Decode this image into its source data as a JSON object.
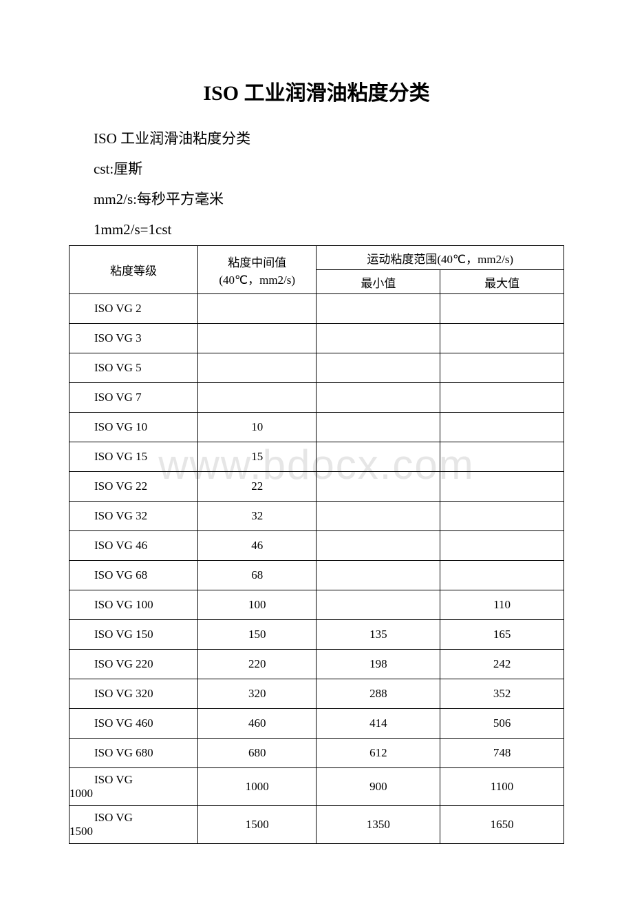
{
  "title_latin": "ISO ",
  "title_cn": "工业润滑油粘度分类",
  "intro": [
    {
      "latin": "ISO ",
      "cn": "工业润滑油粘度分类"
    },
    {
      "latin": "cst:",
      "cn": "厘斯"
    },
    {
      "latin": "mm2/s:",
      "cn": "每秒平方毫米"
    },
    {
      "latin": "1mm2/s=1cst",
      "cn": ""
    }
  ],
  "table": {
    "headers": {
      "grade": "粘度等级",
      "mid_cn": "粘度中间值",
      "mid_unit": "(40℃，mm2/s)",
      "range_cn": "运动粘度范围",
      "range_unit": "(40℃，mm2/s)",
      "min": "最小值",
      "max": "最大值"
    },
    "rows": [
      {
        "grade": "ISO VG 2",
        "mid": "",
        "min": "",
        "max": ""
      },
      {
        "grade": "ISO VG 3",
        "mid": "",
        "min": "",
        "max": ""
      },
      {
        "grade": "ISO VG 5",
        "mid": "",
        "min": "",
        "max": ""
      },
      {
        "grade": "ISO VG 7",
        "mid": "",
        "min": "",
        "max": ""
      },
      {
        "grade": "ISO VG 10",
        "mid": "10",
        "min": "",
        "max": ""
      },
      {
        "grade": "ISO VG 15",
        "mid": "15",
        "min": "",
        "max": ""
      },
      {
        "grade": "ISO VG 22",
        "mid": "22",
        "min": "",
        "max": ""
      },
      {
        "grade": "ISO VG 32",
        "mid": "32",
        "min": "",
        "max": ""
      },
      {
        "grade": "ISO VG 46",
        "mid": "46",
        "min": "",
        "max": ""
      },
      {
        "grade": "ISO VG 68",
        "mid": "68",
        "min": "",
        "max": ""
      },
      {
        "grade": "ISO VG 100",
        "mid": "100",
        "min": "",
        "max": "110"
      },
      {
        "grade": "ISO VG 150",
        "mid": "150",
        "min": "135",
        "max": "165"
      },
      {
        "grade": "ISO VG 220",
        "mid": "220",
        "min": "198",
        "max": "242"
      },
      {
        "grade": "ISO VG 320",
        "mid": "320",
        "min": "288",
        "max": "352"
      },
      {
        "grade": "ISO VG 460",
        "mid": "460",
        "min": "414",
        "max": "506"
      },
      {
        "grade": "ISO VG 680",
        "mid": "680",
        "min": "612",
        "max": "748"
      },
      {
        "grade_l1": "ISO VG",
        "grade_l2": "1000",
        "mid": "1000",
        "min": "900",
        "max": "1100",
        "wrap": true
      },
      {
        "grade_l1": "ISO VG",
        "grade_l2": "1500",
        "mid": "1500",
        "min": "1350",
        "max": "1650",
        "wrap": true
      }
    ]
  },
  "watermark": "www.bdocx.com",
  "colors": {
    "text": "#000000",
    "border": "#000000",
    "background": "#ffffff",
    "watermark": "#e6e6e6"
  }
}
